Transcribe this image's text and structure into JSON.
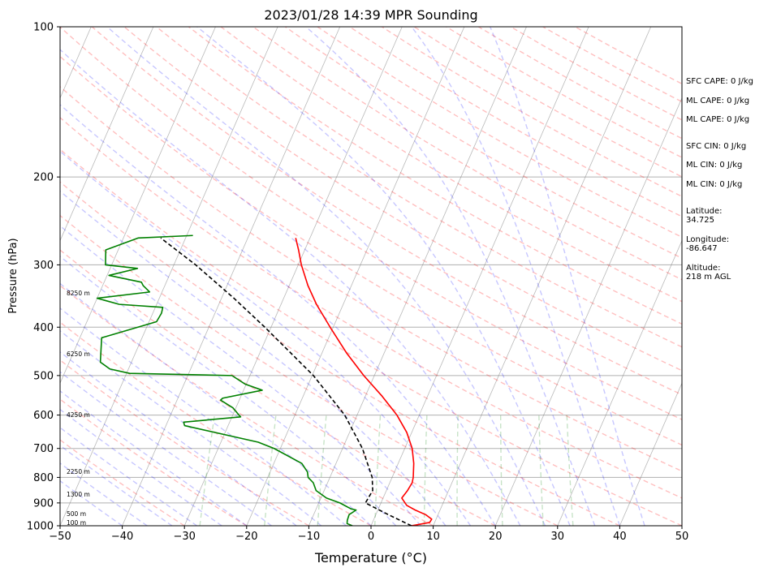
{
  "title": "2023/01/28 14:39 MPR Sounding",
  "chart_data": {
    "type": "line",
    "title": "2023/01/28 14:39 MPR Sounding",
    "xlabel": "Temperature (°C)",
    "ylabel": "Pressure (hPa)",
    "xlim": [
      -50,
      50
    ],
    "ylim": [
      1000,
      100
    ],
    "y_scale": "log",
    "x_ticks": [
      "−50",
      "−40",
      "−30",
      "−20",
      "−10",
      "0",
      "10",
      "20",
      "30",
      "40",
      "50"
    ],
    "x_tick_values": [
      -50,
      -40,
      -30,
      -20,
      -10,
      0,
      10,
      20,
      30,
      40,
      50
    ],
    "y_ticks": [
      "100",
      "200",
      "300",
      "400",
      "500",
      "600",
      "700",
      "800",
      "900",
      "1000"
    ],
    "y_tick_values": [
      100,
      200,
      300,
      400,
      500,
      600,
      700,
      800,
      900,
      1000
    ],
    "horizontal_grid": [
      200,
      300,
      400,
      500,
      600,
      700,
      800,
      900
    ],
    "skew_x": true,
    "series": [
      {
        "role": "temperature",
        "color": "#ff0000",
        "points": [
          [
            1000,
            6.5
          ],
          [
            985,
            9.2
          ],
          [
            970,
            9.3
          ],
          [
            950,
            8.0
          ],
          [
            930,
            6.0
          ],
          [
            910,
            4.3
          ],
          [
            880,
            3.0
          ],
          [
            850,
            3.4
          ],
          [
            820,
            3.6
          ],
          [
            800,
            3.4
          ],
          [
            750,
            2.5
          ],
          [
            700,
            1.2
          ],
          [
            650,
            -0.8
          ],
          [
            600,
            -3.6
          ],
          [
            550,
            -7.3
          ],
          [
            500,
            -11.7
          ],
          [
            450,
            -16.1
          ],
          [
            400,
            -20.5
          ],
          [
            360,
            -24.3
          ],
          [
            330,
            -27.0
          ],
          [
            300,
            -29.5
          ],
          [
            280,
            -31.0
          ],
          [
            265,
            -32.3
          ]
        ]
      },
      {
        "role": "dewpoint",
        "color": "#008000",
        "points": [
          [
            1000,
            -3.0
          ],
          [
            990,
            -4.0
          ],
          [
            975,
            -4.2
          ],
          [
            950,
            -4.3
          ],
          [
            930,
            -3.5
          ],
          [
            925,
            -4.4
          ],
          [
            900,
            -6.6
          ],
          [
            880,
            -9.1
          ],
          [
            850,
            -11.3
          ],
          [
            820,
            -12.3
          ],
          [
            800,
            -13.5
          ],
          [
            780,
            -14.0
          ],
          [
            750,
            -15.5
          ],
          [
            700,
            -21.0
          ],
          [
            680,
            -24.0
          ],
          [
            630,
            -37.0
          ],
          [
            620,
            -37.4
          ],
          [
            605,
            -28.6
          ],
          [
            600,
            -29.0
          ],
          [
            580,
            -30.5
          ],
          [
            560,
            -33.0
          ],
          [
            555,
            -32.8
          ],
          [
            535,
            -27.0
          ],
          [
            520,
            -30.2
          ],
          [
            500,
            -32.9
          ],
          [
            495,
            -49.5
          ],
          [
            485,
            -53.0
          ],
          [
            470,
            -55.0
          ],
          [
            420,
            -56.5
          ],
          [
            390,
            -48.8
          ],
          [
            375,
            -48.6
          ],
          [
            365,
            -48.8
          ],
          [
            360,
            -56.0
          ],
          [
            350,
            -60.0
          ],
          [
            340,
            -52.0
          ],
          [
            330,
            -53.5
          ],
          [
            325,
            -54.0
          ],
          [
            315,
            -59.7
          ],
          [
            305,
            -55.6
          ],
          [
            300,
            -61.0
          ],
          [
            280,
            -62.0
          ],
          [
            265,
            -57.6
          ],
          [
            262,
            -49.0
          ]
        ]
      },
      {
        "role": "parcel",
        "color": "#000000",
        "style": "dashed",
        "points": [
          [
            1000,
            6.5
          ],
          [
            950,
            2.0
          ],
          [
            900,
            -2.5
          ],
          [
            850,
            -2.2
          ],
          [
            800,
            -3.2
          ],
          [
            700,
            -6.8
          ],
          [
            600,
            -12.0
          ],
          [
            500,
            -19.8
          ],
          [
            400,
            -31.0
          ],
          [
            350,
            -38.0
          ],
          [
            300,
            -46.5
          ],
          [
            265,
            -54.0
          ]
        ]
      }
    ],
    "reference_lines": {
      "dry_adiabats_color": "#ff0000",
      "moist_adiabats_color": "#0000ff",
      "mixing_ratio_color": "#008000",
      "isotherms_color": "#808080"
    },
    "height_labels": [
      {
        "label": "100 m",
        "p": 988
      },
      {
        "label": "500 m",
        "p": 949
      },
      {
        "label": "1300 m",
        "p": 868
      },
      {
        "label": "2250 m",
        "p": 781
      },
      {
        "label": "4250 m",
        "p": 601
      },
      {
        "label": "6250 m",
        "p": 454
      },
      {
        "label": "8250 m",
        "p": 343
      }
    ]
  },
  "indices": [
    {
      "label": "SFC CAPE: 0 J/kg"
    },
    {
      "label": "ML CAPE: 0 J/kg"
    },
    {
      "label": "ML CAPE: 0 J/kg"
    },
    {
      "label": "SFC CIN: 0 J/kg"
    },
    {
      "label": "ML CIN: 0 J/kg"
    },
    {
      "label": "ML CIN: 0 J/kg"
    }
  ],
  "location": [
    {
      "label": "Latitude:",
      "value": "34.725"
    },
    {
      "label": "Longitude:",
      "value": "-86.647"
    },
    {
      "label": "Altitude:",
      "value": "218 m AGL"
    }
  ]
}
